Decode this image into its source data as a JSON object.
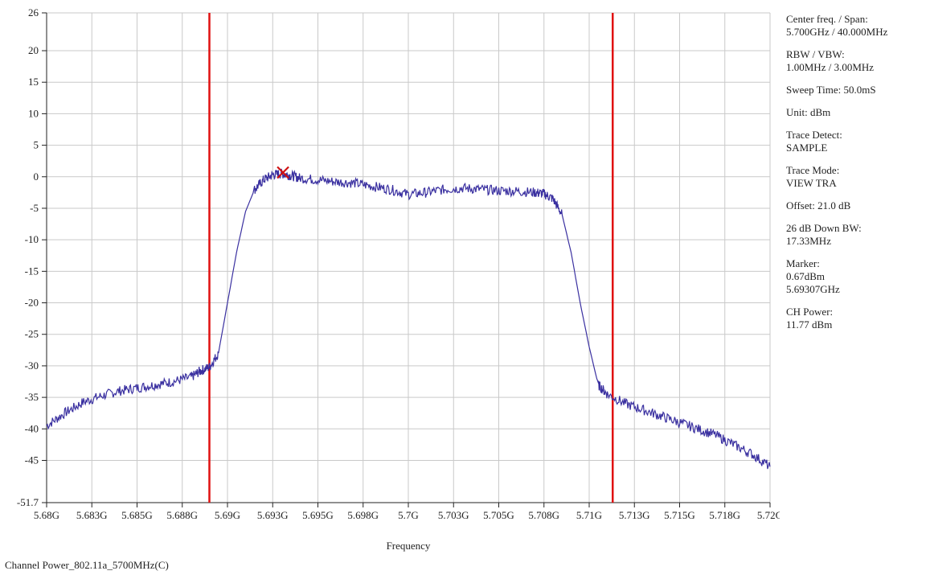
{
  "chart_data": {
    "type": "line",
    "xlabel": "Frequency",
    "ylabel": "",
    "xlim": [
      5.68,
      5.72
    ],
    "ylim": [
      -51.7,
      26
    ],
    "x_ticks": [
      5.68,
      5.6825,
      5.685,
      5.6875,
      5.69,
      5.6925,
      5.695,
      5.6975,
      5.7,
      5.7025,
      5.705,
      5.7075,
      5.71,
      5.7125,
      5.715,
      5.7175,
      5.72
    ],
    "x_tick_labels": [
      "5.68G",
      "5.683G",
      "5.685G",
      "5.688G",
      "5.69G",
      "5.693G",
      "5.695G",
      "5.698G",
      "5.7G",
      "5.703G",
      "5.705G",
      "5.708G",
      "5.71G",
      "5.713G",
      "5.715G",
      "5.718G",
      "5.72G"
    ],
    "y_ticks": [
      26,
      20,
      15,
      10,
      5,
      0,
      -5,
      -10,
      -15,
      -20,
      -25,
      -30,
      -35,
      -40,
      -45,
      -51.7
    ],
    "y_tick_labels": [
      "26",
      "20",
      "15",
      "10",
      "5",
      "0",
      "-5",
      "-10",
      "-15",
      "-20",
      "-25",
      "-30",
      "-35",
      "-40",
      "-45",
      "-51.7"
    ],
    "grid": true,
    "series": [
      {
        "color": "#3a30a0",
        "x": [
          5.68,
          5.681,
          5.682,
          5.683,
          5.684,
          5.685,
          5.686,
          5.687,
          5.688,
          5.6885,
          5.689,
          5.6895,
          5.69,
          5.6905,
          5.691,
          5.6915,
          5.692,
          5.6925,
          5.693,
          5.6935,
          5.694,
          5.695,
          5.696,
          5.697,
          5.698,
          5.699,
          5.7,
          5.701,
          5.702,
          5.703,
          5.704,
          5.705,
          5.706,
          5.707,
          5.7075,
          5.708,
          5.7085,
          5.709,
          5.7095,
          5.71,
          5.7105,
          5.711,
          5.712,
          5.713,
          5.714,
          5.715,
          5.716,
          5.717,
          5.718,
          5.719,
          5.72
        ],
        "y": [
          -39.5,
          -37.5,
          -35.8,
          -34.8,
          -34,
          -33.5,
          -33,
          -32.5,
          -31.8,
          -30.8,
          -30.2,
          -28,
          -20,
          -12,
          -5.5,
          -2,
          -0.5,
          0.3,
          0.5,
          0.2,
          -0.2,
          -0.5,
          -0.8,
          -1,
          -1.5,
          -2,
          -2.8,
          -2.5,
          -2,
          -1.8,
          -2,
          -2.2,
          -2.3,
          -2.5,
          -2.7,
          -3.5,
          -6,
          -12,
          -20,
          -27,
          -33,
          -34.5,
          -36,
          -37,
          -38,
          -39,
          -40,
          -41,
          -42.5,
          -44,
          -46
        ]
      }
    ],
    "vlines": [
      5.689,
      5.7113
    ],
    "vline_color": "#e01010",
    "marker": {
      "x": 5.69307,
      "y": 0.67,
      "color": "#d01010"
    }
  },
  "info_panel": [
    "Center freq. / Span:\n5.700GHz / 40.000MHz",
    "RBW / VBW:\n1.00MHz / 3.00MHz",
    "Sweep Time: 50.0mS",
    "Unit: dBm",
    "Trace Detect:\nSAMPLE",
    "Trace Mode:\nVIEW TRA",
    "Offset: 21.0 dB",
    "26 dB Down BW:\n17.33MHz",
    "Marker:\n0.67dBm\n5.69307GHz",
    "CH Power:\n 11.77 dBm"
  ],
  "caption": "Channel Power_802.11a_5700MHz(C)"
}
